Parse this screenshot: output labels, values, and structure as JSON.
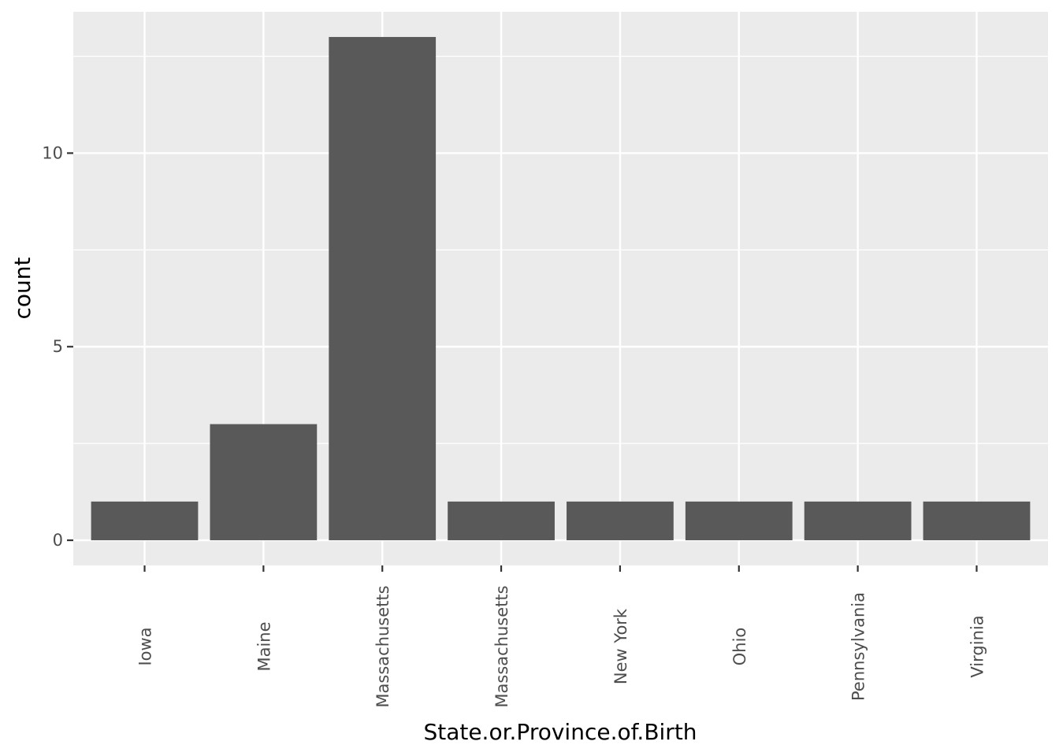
{
  "chart_data": {
    "type": "bar",
    "categories": [
      "Iowa",
      "Maine",
      "Massachusetts",
      "Massachusetts ",
      "New York",
      "Ohio",
      "Pennsylvania",
      "Virginia"
    ],
    "values": [
      1,
      3,
      13,
      1,
      1,
      1,
      1,
      1
    ],
    "xlabel": "State.or.Province.of.Birth",
    "ylabel": "count",
    "ylim": [
      -0.65,
      13.65
    ],
    "yticks": [
      0,
      5,
      10
    ],
    "grid": true,
    "colors": {
      "panel": "#ebebeb",
      "grid": "#ffffff",
      "bar": "#595959",
      "tick": "#333333"
    }
  }
}
